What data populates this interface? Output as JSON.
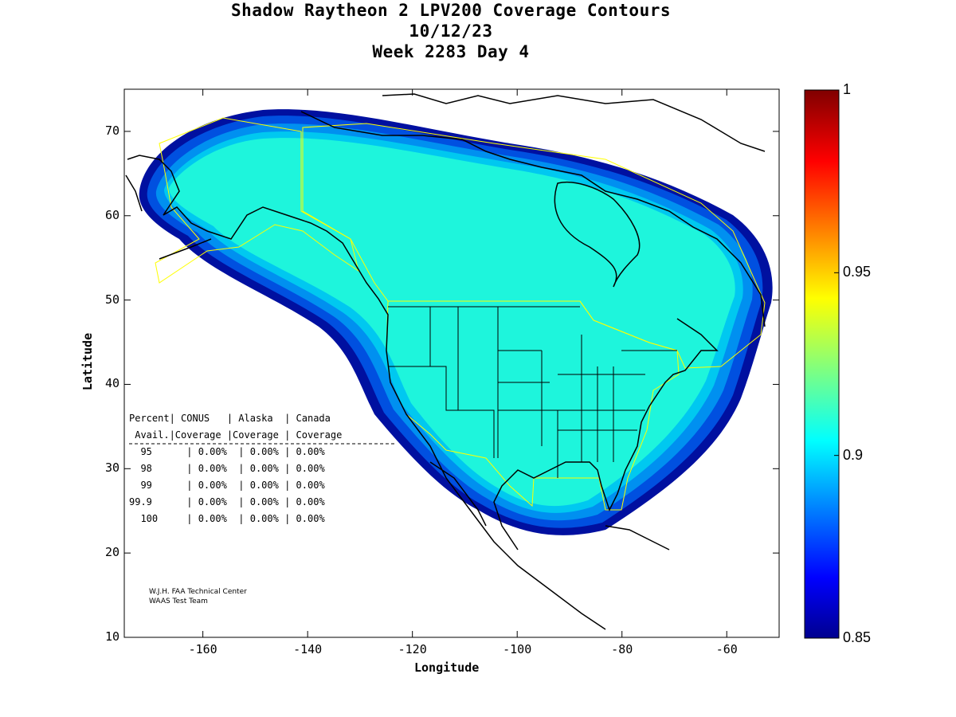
{
  "title": {
    "line1": "Shadow Raytheon 2 LPV200 Coverage Contours",
    "line2": "10/12/23",
    "line3": "Week 2283 Day 4"
  },
  "axes": {
    "xlabel": "Longitude",
    "ylabel": "Latitude",
    "xticks": [
      "-160",
      "-140",
      "-120",
      "-100",
      "-80",
      "-60"
    ],
    "yticks": [
      "10",
      "20",
      "30",
      "40",
      "50",
      "60",
      "70"
    ],
    "xlim": [
      -175,
      -50
    ],
    "ylim": [
      10,
      75
    ]
  },
  "colorbar": {
    "ticks": [
      "1",
      "0.95",
      "0.9",
      "0.85"
    ],
    "range": [
      0.85,
      1.0
    ],
    "colormap": "jet"
  },
  "colors": {
    "coverage_fill": "#1ef5dc",
    "edge_band_1": "#00c8f0",
    "edge_band_2": "#0090f0",
    "edge_band_3": "#0050e0",
    "edge_band_4": "#0010a0",
    "outline": "#ffff00",
    "coast": "#000000"
  },
  "availability_table": {
    "header1": "Percent| CONUS   | Alaska  | Canada",
    "header2": " Avail.|Coverage |Coverage | Coverage",
    "rows": [
      {
        "percent": "95",
        "conus": "0.00%",
        "alaska": "0.00%",
        "canada": "0.00%"
      },
      {
        "percent": "98",
        "conus": "0.00%",
        "alaska": "0.00%",
        "canada": "0.00%"
      },
      {
        "percent": "99",
        "conus": "0.00%",
        "alaska": "0.00%",
        "canada": "0.00%"
      },
      {
        "percent": "99.9",
        "conus": "0.00%",
        "alaska": "0.00%",
        "canada": "0.00%"
      },
      {
        "percent": "100",
        "conus": "0.00%",
        "alaska": "0.00%",
        "canada": "0.00%"
      }
    ]
  },
  "credit": {
    "line1": "W.J.H. FAA Technical Center",
    "line2": "WAAS Test Team"
  }
}
